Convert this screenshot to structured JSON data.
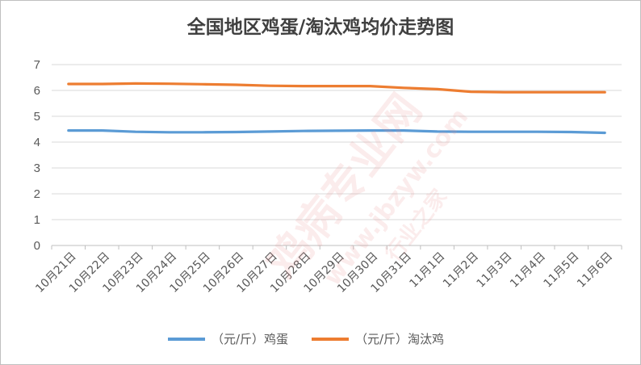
{
  "chart_data": {
    "type": "line",
    "title": "全国地区鸡蛋/淘汰鸡均价走势图",
    "categories": [
      "10月21日",
      "10月22日",
      "10月23日",
      "10月24日",
      "10月25日",
      "10月26日",
      "10月27日",
      "10月28日",
      "10月29日",
      "10月30日",
      "10月31日",
      "11月1日",
      "11月2日",
      "11月3日",
      "11月4日",
      "11月5日",
      "11月6日"
    ],
    "series": [
      {
        "name": "（元/斤）鸡蛋",
        "color": "#5b9bd5",
        "values": [
          4.45,
          4.45,
          4.4,
          4.38,
          4.38,
          4.39,
          4.41,
          4.43,
          4.44,
          4.45,
          4.45,
          4.41,
          4.4,
          4.4,
          4.4,
          4.39,
          4.36
        ]
      },
      {
        "name": "（元/斤）淘汰鸡",
        "color": "#ed7d31",
        "values": [
          6.25,
          6.25,
          6.27,
          6.26,
          6.24,
          6.22,
          6.18,
          6.17,
          6.17,
          6.17,
          6.1,
          6.05,
          5.95,
          5.93,
          5.93,
          5.93,
          5.93
        ]
      }
    ],
    "ylim": [
      0,
      7
    ],
    "yticks": [
      0,
      1,
      2,
      3,
      4,
      5,
      6,
      7
    ],
    "xlabel": "",
    "ylabel": "",
    "grid": true,
    "legend": "bottom"
  },
  "watermark": {
    "line1": "鸡病专业网",
    "line2": "www.jbzyw.com",
    "line3": "行业之家"
  }
}
